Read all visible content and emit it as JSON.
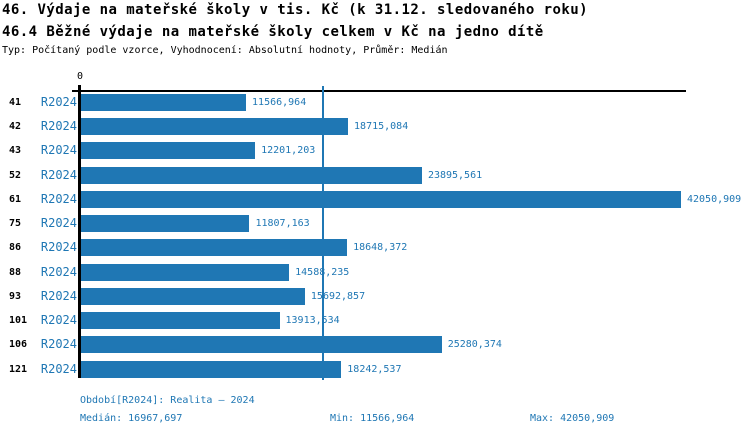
{
  "header": {
    "title_line1": "46. Výdaje na mateřské školy v tis. Kč (k 31.12. sledovaného roku)",
    "title_line2": "46.4 Běžné výdaje na mateřské školy celkem v Kč na jedno dítě",
    "meta_line": "Typ: Počítaný podle vzorce, Vyhodnocení: Absolutní hodnoty, Průměr: Medián"
  },
  "colors": {
    "bar": "#1f77b4",
    "blue_text": "#1f77b4",
    "median_line": "#1f77b4",
    "axis": "#000000"
  },
  "chart_data": {
    "type": "bar",
    "orientation": "horizontal",
    "categories": [
      "41",
      "42",
      "43",
      "52",
      "61",
      "75",
      "86",
      "88",
      "93",
      "101",
      "106",
      "121"
    ],
    "series_label": "R2024",
    "values": [
      11566.964,
      18715.084,
      12201.203,
      23895.561,
      42050.909,
      11807.163,
      18648.372,
      14588.235,
      15692.857,
      13913.534,
      25280.374,
      18242.537
    ],
    "value_labels": [
      "11566,964",
      "18715,084",
      "12201,203",
      "23895,561",
      "42050,909",
      "11807,163",
      "18648,372",
      "14588,235",
      "15692,857",
      "13913,534",
      "25280,374",
      "18242,537"
    ],
    "xlabel": "",
    "ylabel": "",
    "xlim": [
      0,
      42050.909
    ],
    "zero_tick_label": "0",
    "median_value": 16967.697,
    "grid": "median-line-only",
    "legend_position": "none"
  },
  "footer": {
    "period": "Období[R2024]: Realita – 2024",
    "median": "Medián: 16967,697",
    "min": "Min: 11566,964",
    "max": "Max: 42050,909"
  }
}
